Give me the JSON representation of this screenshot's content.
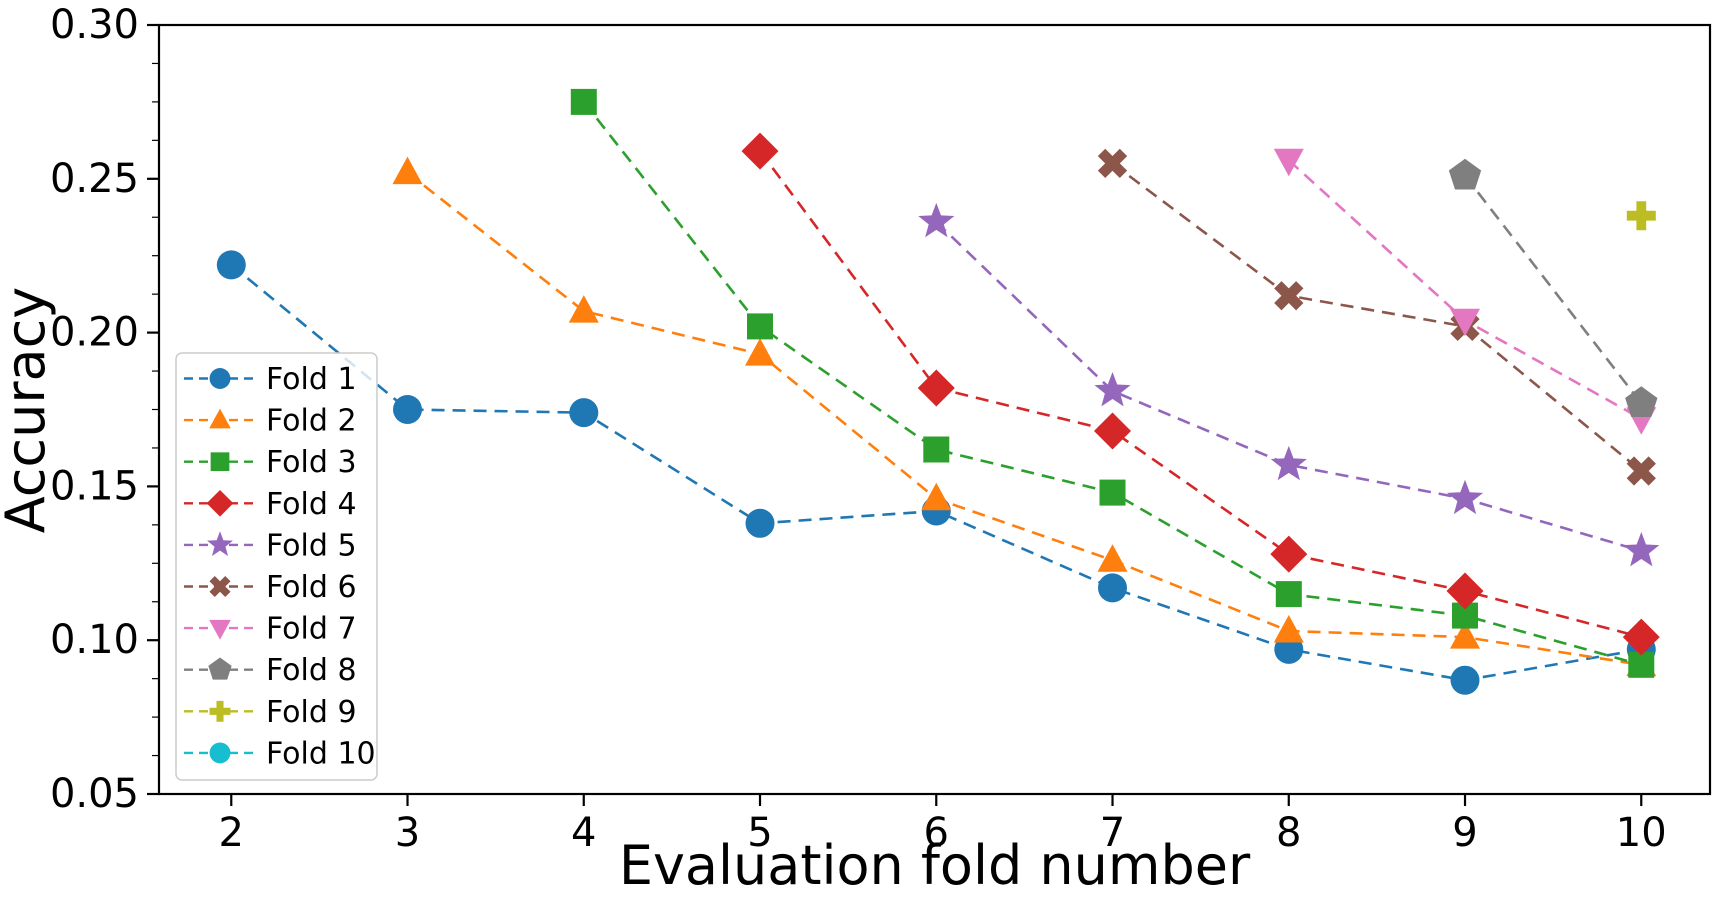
{
  "chart_data": {
    "type": "line",
    "title": "",
    "xlabel": "Evaluation fold number",
    "ylabel": "Accuracy",
    "xlim": [
      1.59,
      10.39
    ],
    "ylim": [
      0.05,
      0.3
    ],
    "x_ticks": [
      2,
      3,
      4,
      5,
      6,
      7,
      8,
      9,
      10
    ],
    "y_ticks": [
      0.05,
      0.1,
      0.15,
      0.2,
      0.25,
      0.3
    ],
    "y_minor_tick_step": 0.0125,
    "grid": false,
    "line_style": "dashed",
    "legend_position": "lower left",
    "series": [
      {
        "name": "Fold 1",
        "color": "#1f77b4",
        "marker": "circle",
        "x": [
          2,
          3,
          4,
          5,
          6,
          7,
          8,
          9,
          10
        ],
        "y": [
          0.222,
          0.175,
          0.174,
          0.138,
          0.142,
          0.117,
          0.097,
          0.087,
          0.097
        ]
      },
      {
        "name": "Fold 2",
        "color": "#ff7f0e",
        "marker": "triangle_up",
        "x": [
          3,
          4,
          5,
          6,
          7,
          8,
          9,
          10
        ],
        "y": [
          0.252,
          0.207,
          0.193,
          0.146,
          0.126,
          0.103,
          0.101,
          0.092
        ]
      },
      {
        "name": "Fold 3",
        "color": "#2ca02c",
        "marker": "square",
        "x": [
          4,
          5,
          6,
          7,
          8,
          9,
          10
        ],
        "y": [
          0.275,
          0.202,
          0.162,
          0.148,
          0.115,
          0.108,
          0.092
        ]
      },
      {
        "name": "Fold 4",
        "color": "#d62728",
        "marker": "diamond",
        "x": [
          5,
          6,
          7,
          8,
          9,
          10
        ],
        "y": [
          0.259,
          0.182,
          0.168,
          0.128,
          0.116,
          0.101
        ]
      },
      {
        "name": "Fold 5",
        "color": "#9467bd",
        "marker": "star",
        "x": [
          6,
          7,
          8,
          9,
          10
        ],
        "y": [
          0.236,
          0.181,
          0.157,
          0.146,
          0.129
        ]
      },
      {
        "name": "Fold 6",
        "color": "#8c564b",
        "marker": "x_filled",
        "x": [
          7,
          8,
          9,
          10
        ],
        "y": [
          0.255,
          0.212,
          0.202,
          0.155
        ]
      },
      {
        "name": "Fold 7",
        "color": "#e377c2",
        "marker": "triangle_down",
        "x": [
          8,
          9,
          10
        ],
        "y": [
          0.256,
          0.204,
          0.172
        ]
      },
      {
        "name": "Fold 8",
        "color": "#7f7f7f",
        "marker": "pentagon",
        "x": [
          9,
          10
        ],
        "y": [
          0.251,
          0.177
        ]
      },
      {
        "name": "Fold 9",
        "color": "#bcbd22",
        "marker": "plus_filled",
        "x": [
          10
        ],
        "y": [
          0.238
        ]
      },
      {
        "name": "Fold 10",
        "color": "#17becf",
        "marker": "circle",
        "x": [],
        "y": []
      }
    ]
  }
}
